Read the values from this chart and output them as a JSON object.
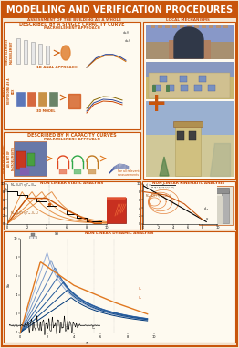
{
  "title": "MODELLING AND VERIFICATION PROCEDURES",
  "title_bg": "#c8550c",
  "title_color": "#ffffff",
  "bg_color": "#f5e8d5",
  "border_color": "#c8550c",
  "sec1_title": "ASSESSMENT OF THE BUILDING AS A WHOLE",
  "sec2_title": "LOCAL MECHANISMS",
  "box1_title": "DESCRIBED BY A SINGLE CAPACITY CURVE",
  "box1_sub": "MACROELEMENT APPROACH",
  "box1_row1_label": "SINGLE ELEMENTS\nMACROELEMENT",
  "box1_mid_label": "1D ANAL APPROACH",
  "box1_row2_label": "ASSETS\nRESPONDING AS A\nBOX",
  "box1_3d_label": "3D MODEL",
  "box2_title": "DESCRIBED BY N CAPACITY CURVES",
  "box2_sub": "MACROELEMENT APPROACH",
  "box2_label": "ASSETS RESPONDING\nAS A SET OF\nMACROELEMENTS",
  "box2_note": "For all relevant\nmeasurements",
  "box3_title": "NON LINEAR STATIC ANALYSIS",
  "box4_title": "NON LINEAR KINEMATIC ANALYSIS",
  "box5_title": "NON LINEAR DYNAMIC ANALYSIS",
  "orange": "#d06010",
  "dark_orange": "#c8550c",
  "mid_orange": "#e07820",
  "box_border": "#c8550c",
  "text_orange": "#c84808",
  "blue": "#304898",
  "black": "#000000",
  "gray": "#888888",
  "white": "#ffffff",
  "cream": "#fefaf0",
  "light_cream": "#fdf5e0"
}
